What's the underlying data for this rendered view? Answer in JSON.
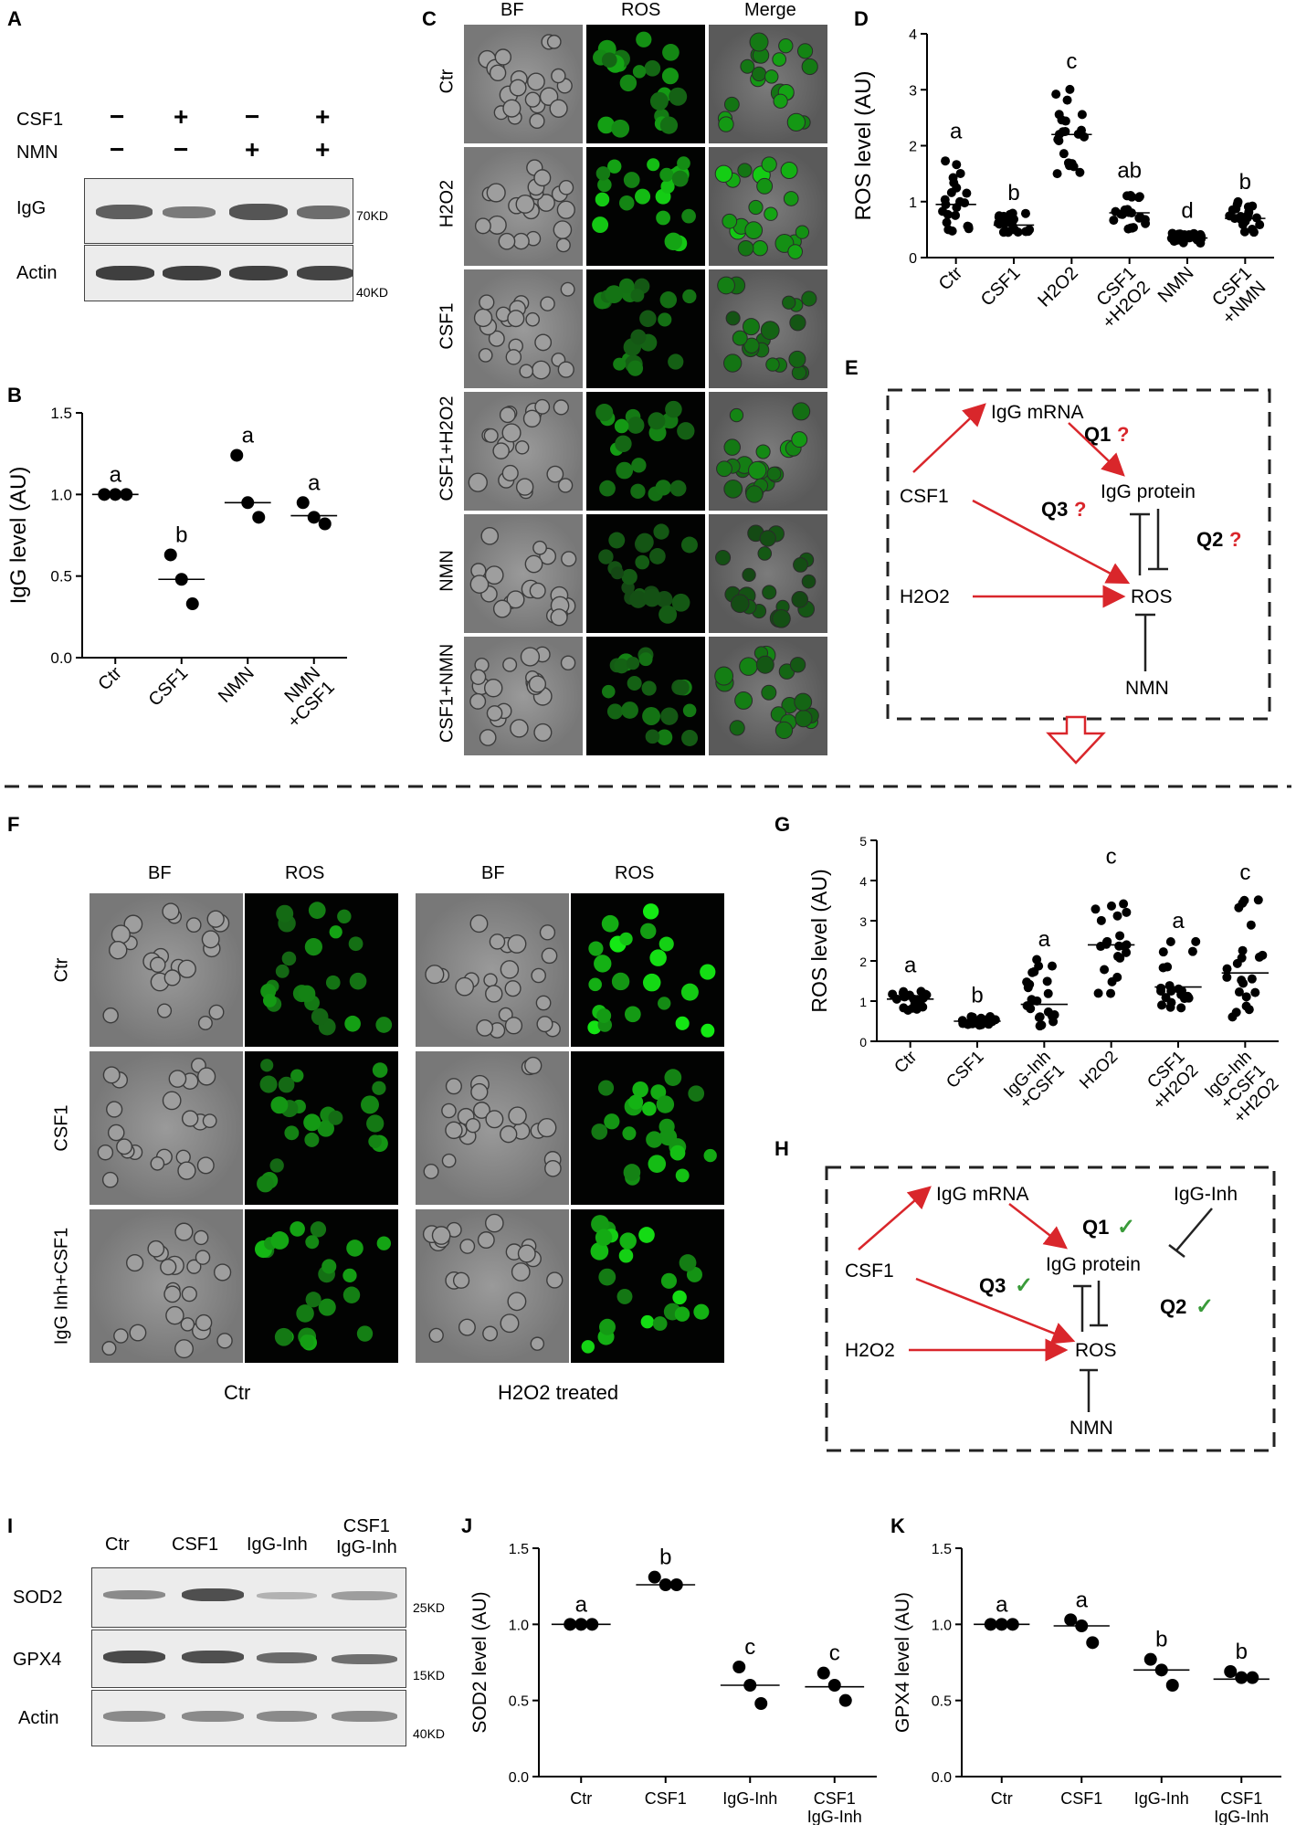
{
  "panels": {
    "A": "A",
    "B": "B",
    "C": "C",
    "D": "D",
    "E": "E",
    "F": "F",
    "G": "G",
    "H": "H",
    "I": "I",
    "J": "J",
    "K": "K"
  },
  "panelA": {
    "rows": [
      {
        "name": "CSF1",
        "signs": [
          "−",
          "+",
          "−",
          "+"
        ]
      },
      {
        "name": "NMN",
        "signs": [
          "−",
          "−",
          "+",
          "+"
        ]
      }
    ],
    "blots": [
      {
        "name": "IgG",
        "kd": "70KD"
      },
      {
        "name": "Actin",
        "kd": "40KD"
      }
    ]
  },
  "panelC": {
    "columns": [
      "BF",
      "ROS",
      "Merge"
    ],
    "rows": [
      "Ctr",
      "H2O2",
      "CSF1",
      "CSF1+H2O2",
      "NMN",
      "CSF1+NMN"
    ]
  },
  "panelE": {
    "nodes": {
      "mrna": "IgG mRNA",
      "protein": "IgG protein",
      "csf1": "CSF1",
      "h2o2": "H2O2",
      "ros": "ROS",
      "nmn": "NMN"
    },
    "q1": "Q1",
    "q2": "Q2",
    "q3": "Q3",
    "mark": "?"
  },
  "panelF": {
    "columns": [
      "BF",
      "ROS",
      "BF",
      "ROS"
    ],
    "rows": [
      "Ctr",
      "CSF1",
      "IgG Inh+CSF1"
    ],
    "groups": [
      "Ctr",
      "H2O2 treated"
    ]
  },
  "panelH": {
    "nodes": {
      "mrna": "IgG mRNA",
      "inh": "IgG-Inh",
      "protein": "IgG protein",
      "csf1": "CSF1",
      "h2o2": "H2O2",
      "ros": "ROS",
      "nmn": "NMN"
    },
    "q1": "Q1",
    "q2": "Q2",
    "q3": "Q3",
    "mark": "✓"
  },
  "panelI": {
    "columns": [
      "Ctr",
      "CSF1",
      "IgG-Inh",
      "CSF1\nIgG-Inh"
    ],
    "blots": [
      {
        "name": "SOD2",
        "kd": "25KD"
      },
      {
        "name": "GPX4",
        "kd": "15KD"
      },
      {
        "name": "Actin",
        "kd": "40KD"
      }
    ]
  },
  "colors": {
    "red": "#d9262b",
    "green": "#3a9b3a",
    "dark": "#222222"
  },
  "chart_data": [
    {
      "id": "B",
      "type": "scatter",
      "ylabel": "IgG level (AU)",
      "ylim": [
        0,
        1.5
      ],
      "yticks": [
        "0.0",
        "0.5",
        "1.0",
        "1.5"
      ],
      "categories": [
        "Ctr",
        "CSF1",
        "NMN",
        "NMN\n+CSF1"
      ],
      "points": [
        [
          1.0,
          1.0,
          1.0
        ],
        [
          0.63,
          0.48,
          0.33
        ],
        [
          1.24,
          0.95,
          0.86
        ],
        [
          0.95,
          0.86,
          0.82
        ]
      ],
      "means": [
        1.0,
        0.48,
        0.95,
        0.87
      ],
      "letters": [
        "a",
        "b",
        "a",
        "a"
      ]
    },
    {
      "id": "D",
      "type": "scatter",
      "ylabel": "ROS level (AU)",
      "ylim": [
        0,
        4
      ],
      "yticks": [
        "0",
        "1",
        "2",
        "3",
        "4"
      ],
      "categories": [
        "Ctr",
        "CSF1",
        "H2O2",
        "CSF1\n+H2O2",
        "NMN",
        "CSF1\n+NMN"
      ],
      "means": [
        0.95,
        0.58,
        2.2,
        0.8,
        0.35,
        0.7
      ],
      "spreads": [
        [
          0.4,
          1.9
        ],
        [
          0.45,
          0.8
        ],
        [
          1.35,
          3.15
        ],
        [
          0.5,
          1.2
        ],
        [
          0.25,
          0.48
        ],
        [
          0.45,
          1.0
        ]
      ],
      "letters": [
        "a",
        "b",
        "c",
        "ab",
        "d",
        "b"
      ]
    },
    {
      "id": "G",
      "type": "scatter",
      "ylabel": "ROS level (AU)",
      "ylim": [
        0,
        5
      ],
      "yticks": [
        "0",
        "1",
        "2",
        "3",
        "4",
        "5"
      ],
      "categories": [
        "Ctr",
        "CSF1",
        "IgG-Inh\n+CSF1",
        "H2O2",
        "CSF1\n+H2O2",
        "IgG-Inh\n+CSF1\n+H2O2"
      ],
      "means": [
        1.05,
        0.5,
        0.92,
        2.4,
        1.35,
        1.7
      ],
      "spreads": [
        [
          0.75,
          1.4
        ],
        [
          0.4,
          0.65
        ],
        [
          0.3,
          2.05
        ],
        [
          1.15,
          4.1
        ],
        [
          0.8,
          2.5
        ],
        [
          0.6,
          3.7
        ]
      ],
      "letters": [
        "a",
        "b",
        "a",
        "c",
        "a",
        "c"
      ]
    },
    {
      "id": "J",
      "type": "scatter",
      "ylabel": "SOD2 level (AU)",
      "ylim": [
        0,
        1.5
      ],
      "yticks": [
        "0.0",
        "0.5",
        "1.0",
        "1.5"
      ],
      "categories": [
        "Ctr",
        "CSF1",
        "IgG-Inh",
        "CSF1\nIgG-Inh"
      ],
      "points": [
        [
          1.0,
          1.0,
          1.0
        ],
        [
          1.31,
          1.26,
          1.26
        ],
        [
          0.72,
          0.6,
          0.48
        ],
        [
          0.68,
          0.6,
          0.5
        ]
      ],
      "means": [
        1.0,
        1.26,
        0.6,
        0.59
      ],
      "letters": [
        "a",
        "b",
        "c",
        "c"
      ]
    },
    {
      "id": "K",
      "type": "scatter",
      "ylabel": "GPX4 level (AU)",
      "ylim": [
        0,
        1.5
      ],
      "yticks": [
        "0.0",
        "0.5",
        "1.0",
        "1.5"
      ],
      "categories": [
        "Ctr",
        "CSF1",
        "IgG-Inh",
        "CSF1\nIgG-Inh"
      ],
      "points": [
        [
          1.0,
          1.0,
          1.0
        ],
        [
          1.03,
          0.99,
          0.88
        ],
        [
          0.77,
          0.7,
          0.6
        ],
        [
          0.69,
          0.65,
          0.65
        ]
      ],
      "means": [
        1.0,
        0.99,
        0.7,
        0.64
      ],
      "letters": [
        "a",
        "a",
        "b",
        "b"
      ]
    }
  ]
}
